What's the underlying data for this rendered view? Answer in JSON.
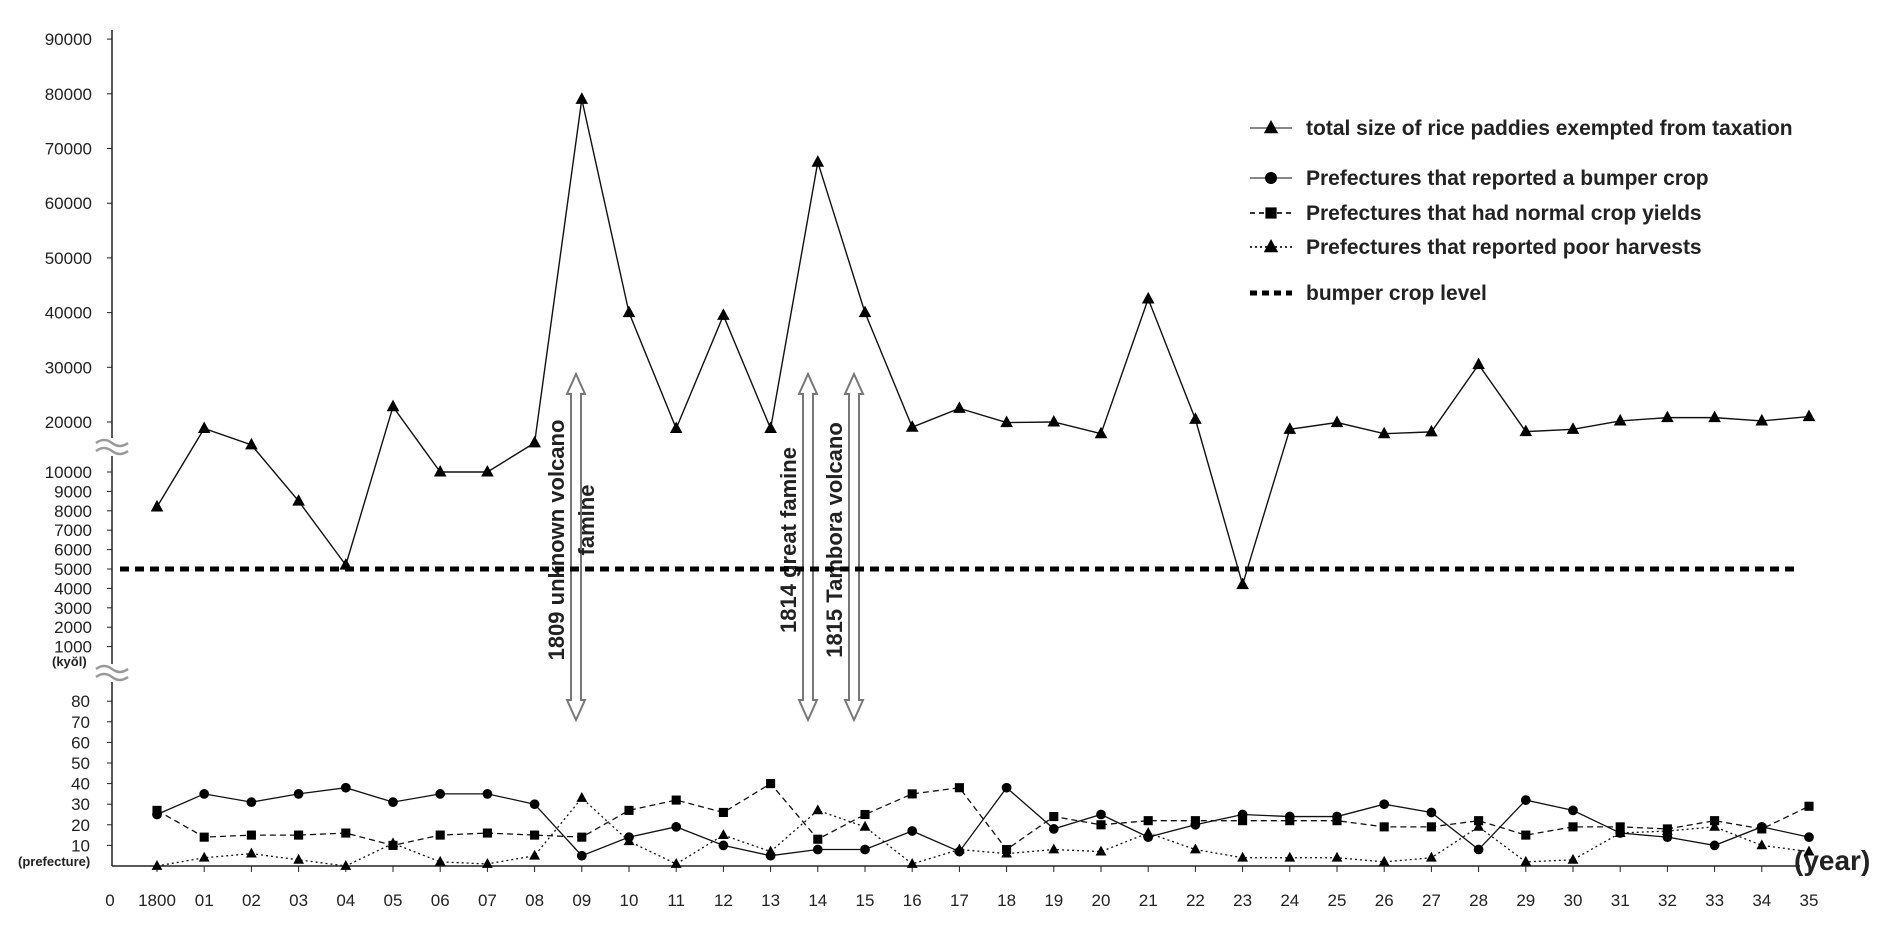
{
  "chart_data": {
    "type": "line",
    "x_tick_labels": [
      "0",
      "1800",
      "01",
      "02",
      "03",
      "04",
      "05",
      "06",
      "07",
      "08",
      "09",
      "10",
      "11",
      "12",
      "13",
      "14",
      "15",
      "16",
      "17",
      "18",
      "19",
      "20",
      "21",
      "22",
      "23",
      "24",
      "25",
      "26",
      "27",
      "28",
      "29",
      "30",
      "31",
      "32",
      "33",
      "34",
      "35"
    ],
    "xlabel": "(year)",
    "years": [
      1800,
      1801,
      1802,
      1803,
      1804,
      1805,
      1806,
      1807,
      1808,
      1809,
      1810,
      1811,
      1812,
      1813,
      1814,
      1815,
      1816,
      1817,
      1818,
      1819,
      1820,
      1821,
      1822,
      1823,
      1824,
      1825,
      1826,
      1827,
      1828,
      1829,
      1830,
      1831,
      1832,
      1833,
      1834,
      1835
    ],
    "upper_panel": {
      "ylabel": "(kyŏl)",
      "ytick_labels": [
        "1000",
        "2000",
        "3000",
        "4000",
        "5000",
        "6000",
        "7000",
        "8000",
        "9000",
        "10000",
        "20000",
        "30000",
        "40000",
        "50000",
        "60000",
        "70000",
        "80000",
        "90000"
      ],
      "series": [
        {
          "name": "total size of rice paddies exempted from taxation",
          "marker": "triangle",
          "values": [
            8200,
            17500,
            11200,
            8500,
            5200,
            22800,
            10000,
            10000,
            12000,
            79000,
            40000,
            17500,
            39500,
            17500,
            67500,
            40000,
            18000,
            22500,
            19800,
            20000,
            15500,
            42500,
            20500,
            4200,
            17200,
            19800,
            15500,
            16200,
            30500,
            16300,
            17200,
            20200,
            20800,
            20800,
            20200,
            21000
          ]
        }
      ],
      "reference_line": {
        "name": "bumper crop level",
        "value": 5000
      },
      "annotations": [
        {
          "year": 1809,
          "lines": [
            "1809 unknown volcano",
            "famine"
          ]
        },
        {
          "year": 1814,
          "lines": [
            "1814 great famine"
          ]
        },
        {
          "year": 1815,
          "lines": [
            "1815 Tambora volcano"
          ]
        }
      ]
    },
    "lower_panel": {
      "ylabel": "(prefecture)",
      "ytick_labels": [
        "10",
        "20",
        "30",
        "40",
        "50",
        "60",
        "70",
        "80"
      ],
      "series": [
        {
          "name": "Prefectures that reported a bumper crop",
          "marker": "circle",
          "dash": "solid",
          "values": [
            25,
            35,
            31,
            35,
            38,
            31,
            35,
            35,
            30,
            5,
            14,
            19,
            10,
            5,
            8,
            8,
            17,
            7,
            38,
            18,
            25,
            14,
            20,
            25,
            24,
            24,
            30,
            26,
            8,
            32,
            27,
            16,
            14,
            10,
            19,
            14
          ]
        },
        {
          "name": "Prefectures that had normal crop yields",
          "marker": "square",
          "dash": "dashed",
          "values": [
            27,
            14,
            15,
            15,
            16,
            10,
            15,
            16,
            15,
            14,
            27,
            32,
            26,
            40,
            13,
            25,
            35,
            38,
            8,
            24,
            20,
            22,
            22,
            22,
            22,
            22,
            19,
            19,
            22,
            15,
            19,
            19,
            18,
            22,
            18,
            29
          ]
        },
        {
          "name": "Prefectures that reported poor harvests",
          "marker": "triangle",
          "dash": "dotted",
          "values": [
            0,
            4,
            6,
            3,
            0,
            11,
            2,
            1,
            5,
            33,
            12,
            1,
            15,
            7,
            27,
            19,
            1,
            8,
            6,
            8,
            7,
            16,
            8,
            4,
            4,
            4,
            2,
            4,
            19,
            2,
            3,
            16,
            17,
            19,
            10,
            7
          ]
        }
      ]
    }
  },
  "legend": [
    {
      "label": "total size of rice paddies exempted from taxation",
      "marker": "triangle",
      "line": "solid-gray"
    },
    {
      "label": "Prefectures that reported a bumper crop",
      "marker": "circle",
      "line": "solid-gray"
    },
    {
      "label": "Prefectures that had normal crop yields",
      "marker": "square",
      "line": "dashed"
    },
    {
      "label": "Prefectures that reported poor harvests",
      "marker": "triangle",
      "line": "dotted"
    },
    {
      "label": "bumper crop level",
      "marker": "none",
      "line": "thick-dashed"
    }
  ],
  "colors": {
    "line": "#111111",
    "axis": "#222222",
    "legend_line": "#888888",
    "arrow_stroke": "#777777",
    "break_mark": "#999999"
  }
}
